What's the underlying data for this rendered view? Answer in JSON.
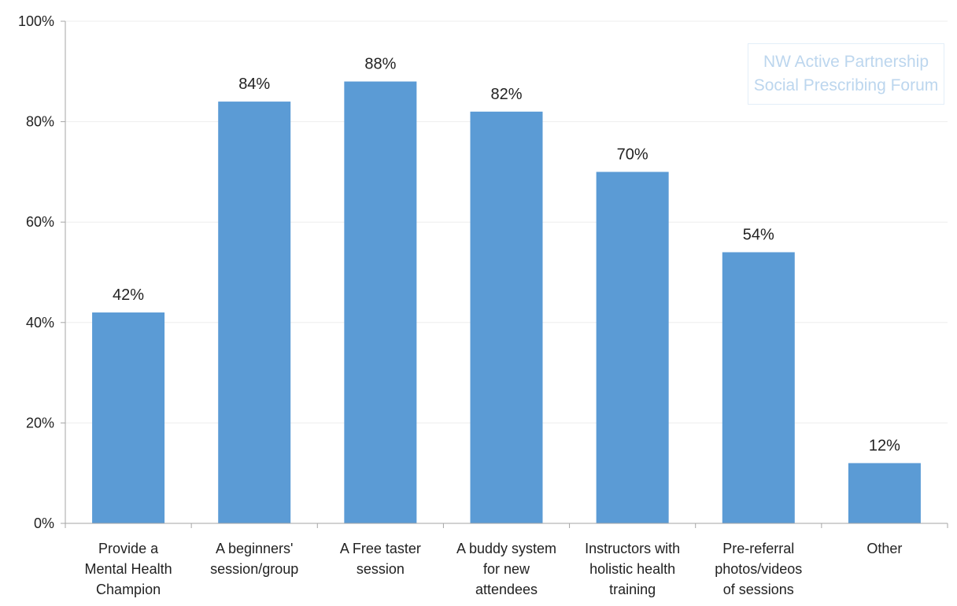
{
  "chart_data": {
    "type": "bar",
    "title": "",
    "xlabel": "",
    "ylabel": "",
    "categories": [
      [
        "Provide a",
        "Mental Health",
        "Champion"
      ],
      [
        "A beginners'",
        "session/group"
      ],
      [
        "A Free taster",
        "session"
      ],
      [
        "A buddy system",
        "for new",
        "attendees"
      ],
      [
        "Instructors with",
        "holistic health",
        "training"
      ],
      [
        "Pre-referral",
        "photos/videos",
        "of sessions"
      ],
      [
        "Other"
      ]
    ],
    "values": [
      42,
      84,
      88,
      82,
      70,
      54,
      12
    ],
    "data_labels": [
      "42%",
      "84%",
      "88%",
      "82%",
      "70%",
      "54%",
      "12%"
    ],
    "ylim": [
      0,
      100
    ],
    "yticks": [
      0,
      20,
      40,
      60,
      80,
      100
    ],
    "ytick_labels": [
      "0%",
      "20%",
      "40%",
      "60%",
      "80%",
      "100%"
    ],
    "grid": true,
    "legend": "none",
    "bar_color": "#5b9bd5",
    "gridline_color": "#eeeeee",
    "axis_color": "#a6a6a6",
    "text_color": "#222222"
  },
  "watermark": {
    "line1": "NW Active Partnership",
    "line2": "Social Prescribing Forum",
    "color": "#bcd6ee"
  }
}
